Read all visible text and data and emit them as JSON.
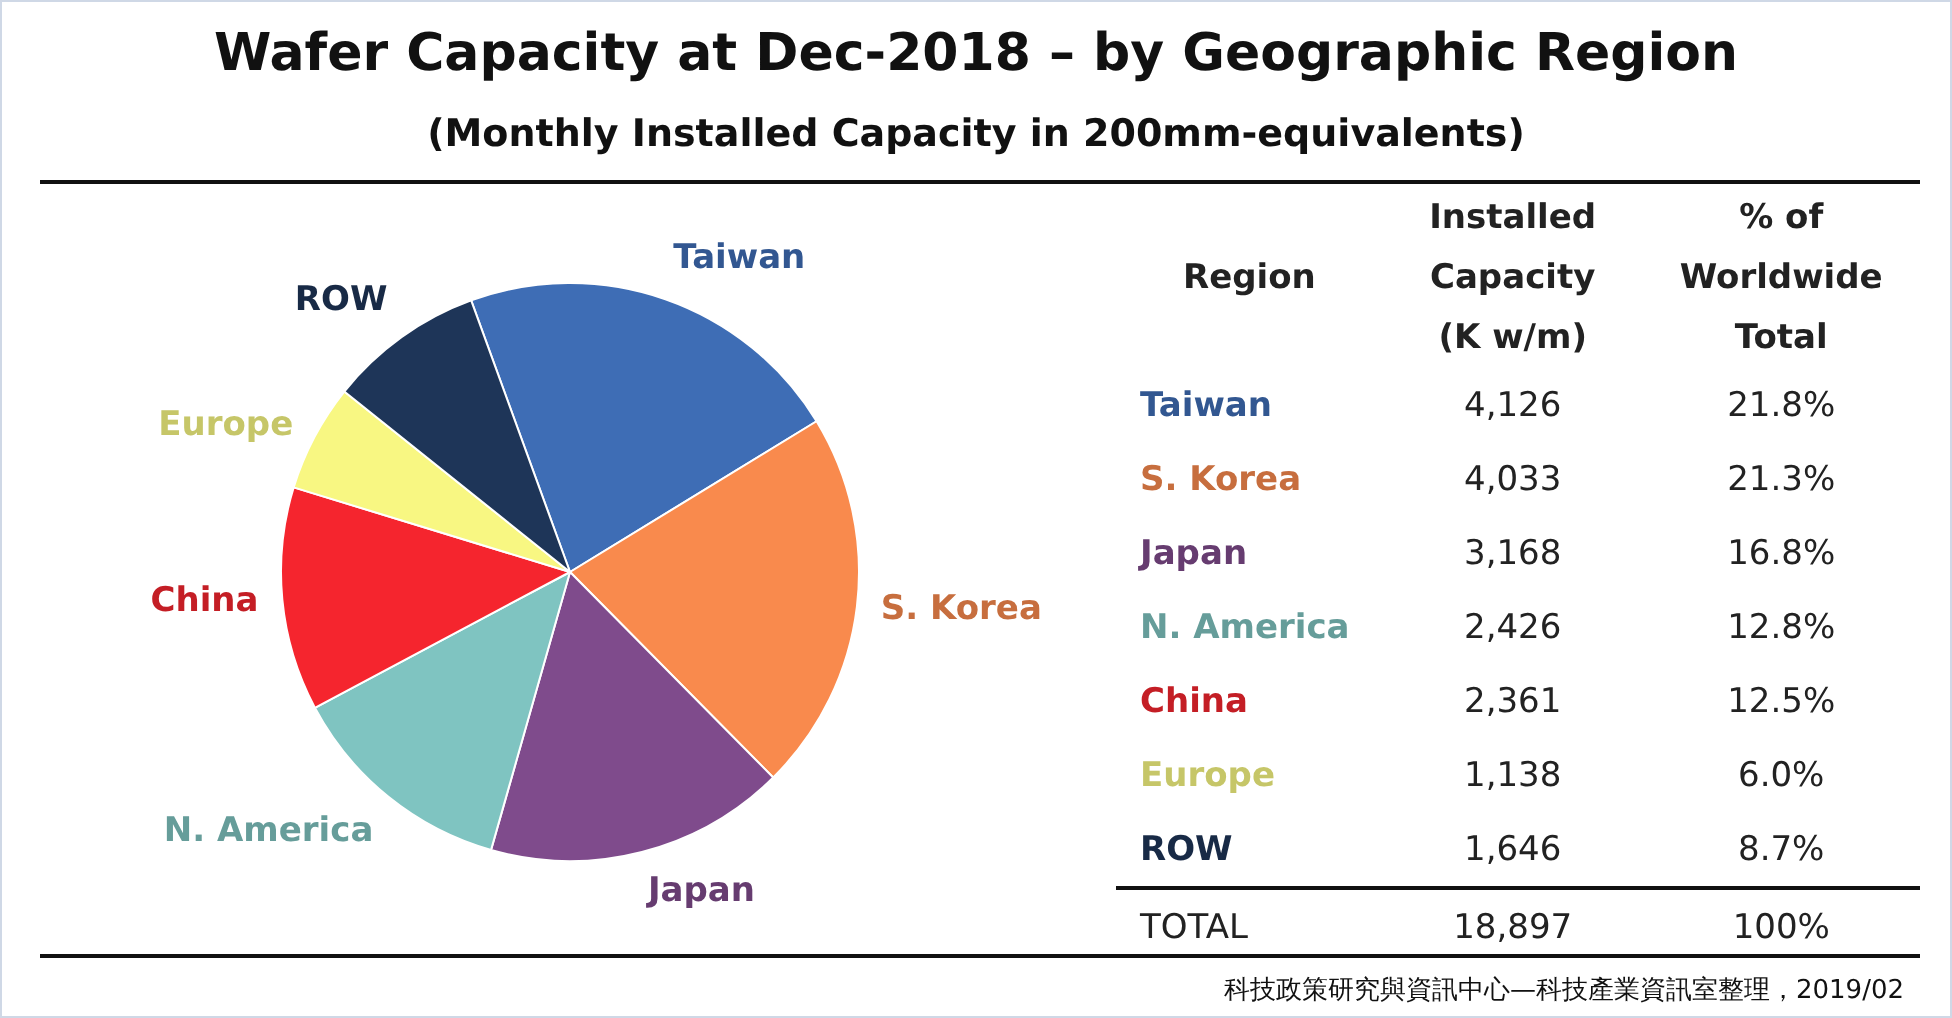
{
  "chart_data": {
    "type": "pie",
    "title": "Wafer Capacity at Dec-2018 – by Geographic Region",
    "subtitle": "(Monthly Installed Capacity in 200mm-equivalents)",
    "categories": [
      "Taiwan",
      "S. Korea",
      "Japan",
      "N. America",
      "China",
      "Europe",
      "ROW"
    ],
    "values": [
      21.8,
      21.3,
      16.8,
      12.8,
      12.5,
      6.0,
      8.7
    ],
    "colors": [
      "#3e6db5",
      "#f98a4d",
      "#7f4b8c",
      "#7fc4c1",
      "#f5252e",
      "#f8f782",
      "#1e3558"
    ],
    "legend": false,
    "annotations": [
      "Region",
      "Installed Capacity (K w/m)",
      "% of Worldwide Total",
      "4,126",
      "4,033",
      "3,168",
      "2,426",
      "2,361",
      "1,138",
      "1,646",
      "21.8%",
      "21.3%",
      "16.8%",
      "12.8%",
      "12.5%",
      "6.0%",
      "8.7%",
      "TOTAL",
      "18,897",
      "100%",
      "科技政策研究與資訊中心—科技產業資訊室整理，2019/02"
    ]
  }
}
